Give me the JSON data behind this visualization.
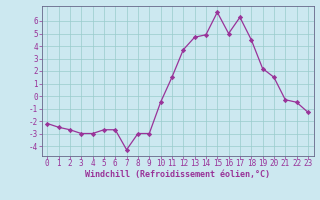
{
  "x": [
    0,
    1,
    2,
    3,
    4,
    5,
    6,
    7,
    8,
    9,
    10,
    11,
    12,
    13,
    14,
    15,
    16,
    17,
    18,
    19,
    20,
    21,
    22,
    23
  ],
  "y": [
    -2.2,
    -2.5,
    -2.7,
    -3.0,
    -3.0,
    -2.7,
    -2.7,
    -4.3,
    -3.0,
    -3.0,
    -0.5,
    1.5,
    3.7,
    4.7,
    4.9,
    6.7,
    5.0,
    6.3,
    4.5,
    2.2,
    1.5,
    -0.3,
    -0.5,
    -1.3
  ],
  "line_color": "#993399",
  "marker": "D",
  "marker_size": 2.2,
  "bg_color": "#cce8f0",
  "grid_color": "#99cccc",
  "xlabel": "Windchill (Refroidissement éolien,°C)",
  "xlabel_color": "#993399",
  "tick_color": "#993399",
  "label_color": "#993399",
  "ylim": [
    -4.8,
    7.2
  ],
  "xlim": [
    -0.5,
    23.5
  ],
  "yticks": [
    -4,
    -3,
    -2,
    -1,
    0,
    1,
    2,
    3,
    4,
    5,
    6
  ],
  "xticks": [
    0,
    1,
    2,
    3,
    4,
    5,
    6,
    7,
    8,
    9,
    10,
    11,
    12,
    13,
    14,
    15,
    16,
    17,
    18,
    19,
    20,
    21,
    22,
    23
  ],
  "tick_fontsize": 5.5,
  "xlabel_fontsize": 6.0,
  "spine_color": "#666688"
}
